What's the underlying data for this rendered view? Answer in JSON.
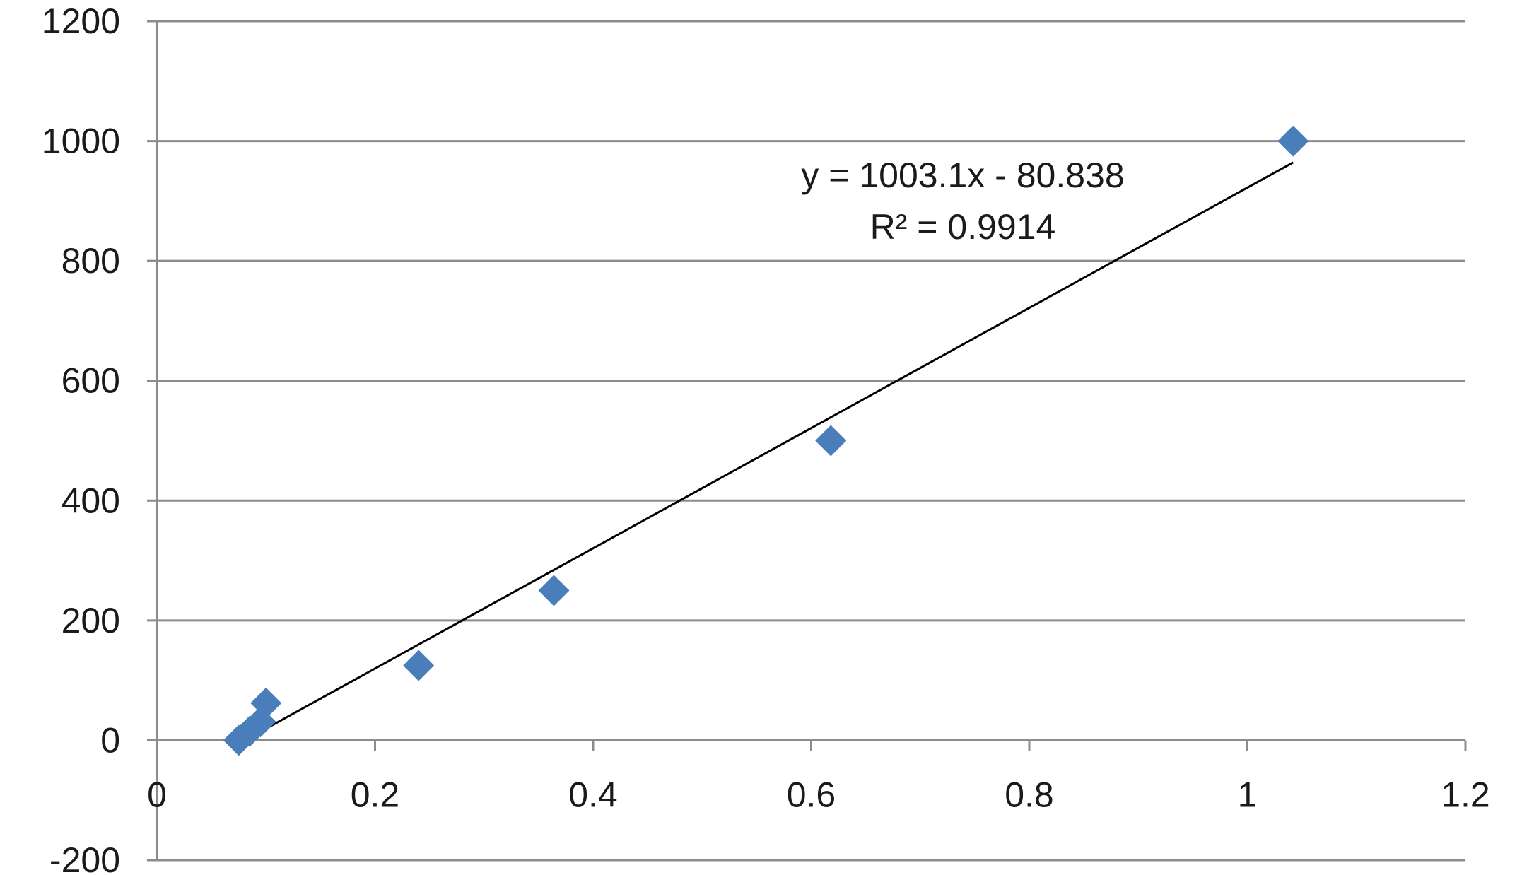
{
  "chart_data": {
    "type": "scatter",
    "title": "",
    "xlabel": "",
    "ylabel": "",
    "xlim": [
      0,
      1.2
    ],
    "ylim": [
      -200,
      1200
    ],
    "x_ticks": [
      "0",
      "0.2",
      "0.4",
      "0.6",
      "0.8",
      "1",
      "1.2"
    ],
    "y_ticks": [
      "-200",
      "0",
      "200",
      "400",
      "600",
      "800",
      "1000",
      "1200"
    ],
    "grid": "horizontal",
    "series": [
      {
        "marker": "diamond",
        "color": "#4a7ebb",
        "points": [
          {
            "x": 0.075,
            "y": 0
          },
          {
            "x": 0.085,
            "y": 15
          },
          {
            "x": 0.095,
            "y": 31
          },
          {
            "x": 0.1,
            "y": 62
          },
          {
            "x": 0.24,
            "y": 125
          },
          {
            "x": 0.364,
            "y": 250
          },
          {
            "x": 0.618,
            "y": 500
          },
          {
            "x": 1.042,
            "y": 1000
          }
        ]
      }
    ],
    "trendline": {
      "slope": 1003.1,
      "intercept": -80.838,
      "x_range": [
        0.075,
        1.042
      ],
      "color": "#000000",
      "equation_label": "y = 1003.1x - 80.838",
      "r2_label": "R² = 0.9914"
    }
  }
}
